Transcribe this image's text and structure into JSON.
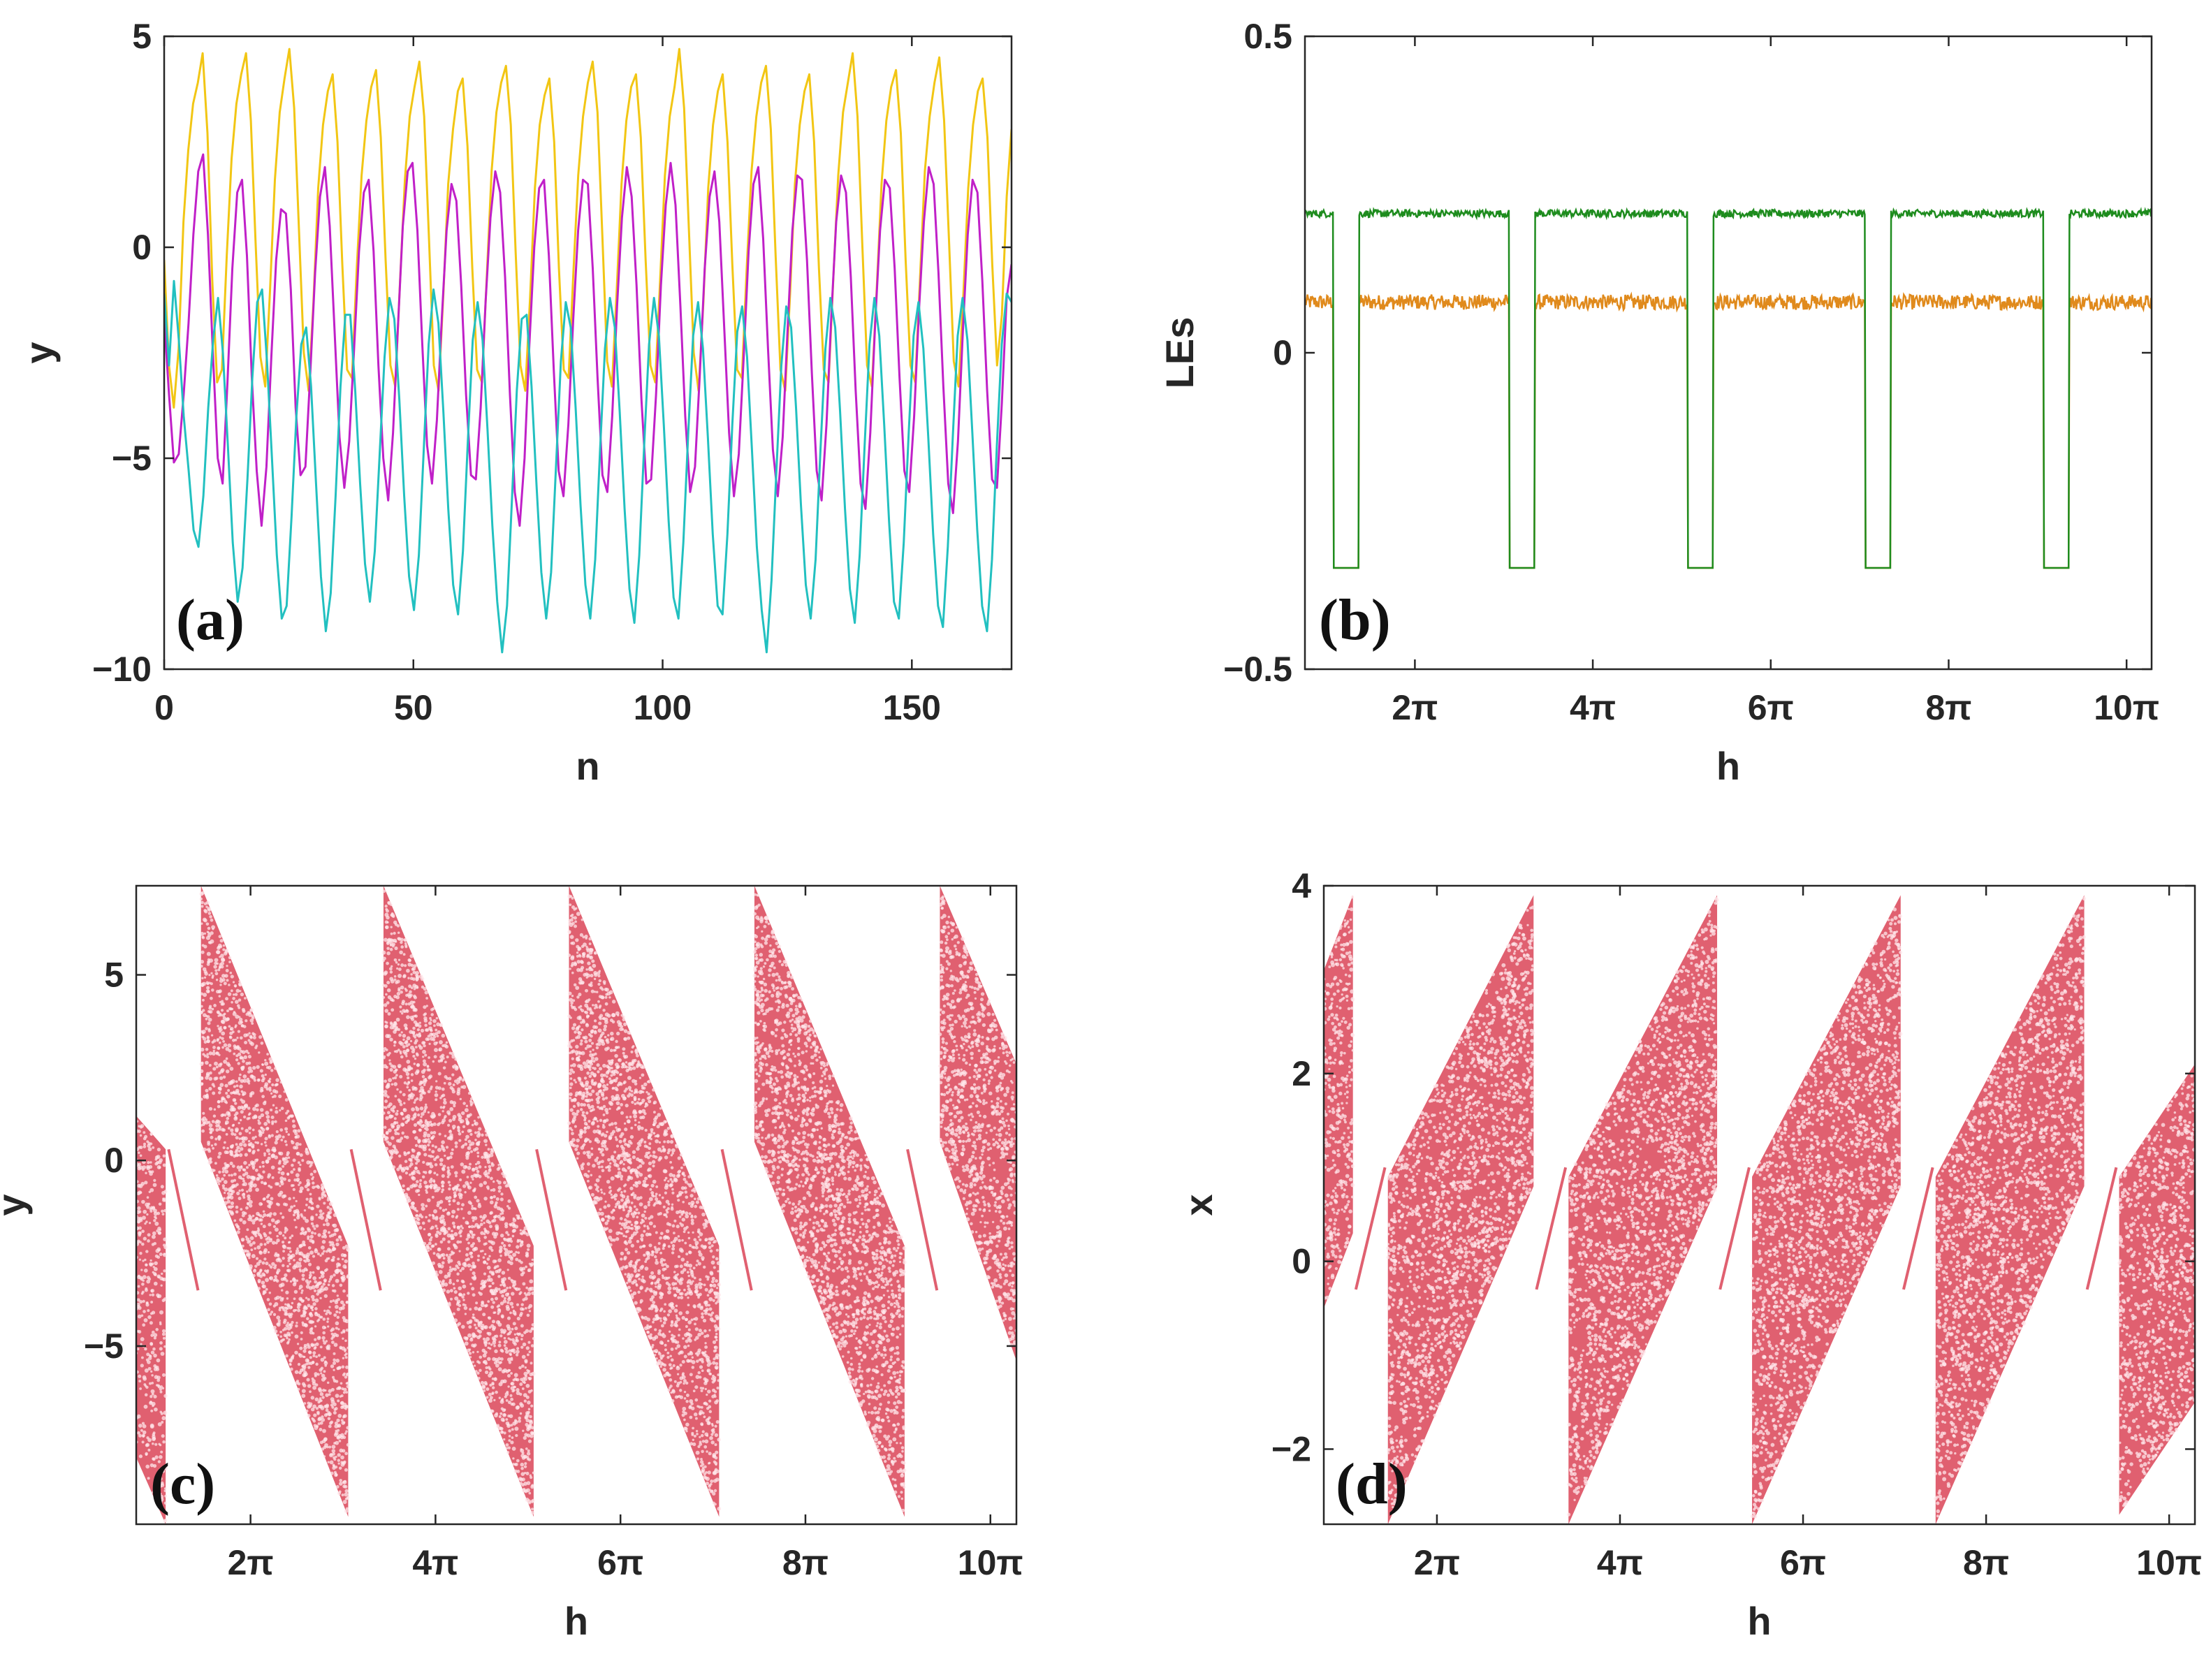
{
  "figure": {
    "description_labels": [
      "(a)",
      "(b)",
      "(c)",
      "(d)"
    ]
  },
  "chart_data": [
    {
      "id": "a",
      "type": "line",
      "panel_label": "(a)",
      "xlabel": "n",
      "ylabel": "y",
      "xlim": [
        0,
        170
      ],
      "ylim": [
        -10,
        5
      ],
      "xticks": [
        0,
        50,
        100,
        150
      ],
      "xtick_labels": [
        "0",
        "50",
        "100",
        "150"
      ],
      "yticks": [
        -10,
        -5,
        0,
        5
      ],
      "ytick_labels": [
        "−10",
        "−5",
        "0",
        "5"
      ],
      "series": [
        {
          "name": "yellow",
          "color": "#f2c614",
          "values": [
            -0.3,
            -2.8,
            -3.8,
            -2.4,
            0.6,
            2.3,
            3.4,
            3.9,
            4.6,
            2.7,
            -0.8,
            -3.2,
            -2.9,
            -0.2,
            2.1,
            3.4,
            4.1,
            4.6,
            3.0,
            0.1,
            -2.6,
            -3.3,
            -1.0,
            1.6,
            3.2,
            4.0,
            4.7,
            3.3,
            0.4,
            -2.5,
            -3.4,
            -1.3,
            1.4,
            2.9,
            3.7,
            4.1,
            2.5,
            -0.4,
            -2.9,
            -3.1,
            -0.5,
            1.7,
            3.0,
            3.8,
            4.2,
            2.6,
            -0.3,
            -2.8,
            -3.3,
            -0.8,
            1.6,
            3.1,
            3.8,
            4.4,
            3.1,
            0.2,
            -2.8,
            -3.4,
            -1.1,
            1.5,
            2.8,
            3.7,
            4.0,
            2.4,
            -0.5,
            -2.9,
            -3.2,
            -0.7,
            1.8,
            3.2,
            3.9,
            4.3,
            2.9,
            -0.1,
            -2.8,
            -3.4,
            -1.2,
            1.4,
            2.9,
            3.6,
            4.0,
            2.5,
            -0.5,
            -2.9,
            -3.1,
            -0.6,
            1.7,
            3.1,
            3.9,
            4.4,
            3.2,
            0.3,
            -2.7,
            -3.3,
            -1.0,
            1.5,
            3.0,
            3.8,
            4.1,
            2.6,
            -0.3,
            -2.8,
            -3.2,
            -0.8,
            1.7,
            3.1,
            3.8,
            4.7,
            3.3,
            0.4,
            -2.5,
            -3.4,
            -1.3,
            1.4,
            2.9,
            3.7,
            4.1,
            2.5,
            -0.4,
            -2.9,
            -3.1,
            -0.5,
            1.8,
            3.1,
            3.9,
            4.3,
            2.8,
            -0.2,
            -2.9,
            -3.4,
            -1.1,
            1.5,
            2.9,
            3.7,
            4.1,
            2.5,
            -0.5,
            -2.9,
            -3.2,
            -0.7,
            1.7,
            3.2,
            3.9,
            4.6,
            3.1,
            0.1,
            -2.8,
            -3.3,
            -1.0,
            1.5,
            3.0,
            3.8,
            4.2,
            2.7,
            -0.3,
            -2.8,
            -3.2,
            -0.7,
            1.8,
            3.1,
            3.9,
            4.5,
            3.0,
            0.2,
            -2.7,
            -3.3,
            -1.1,
            1.4,
            2.9,
            3.7,
            4.0,
            2.6,
            -0.4,
            -2.8,
            -1.6,
            1.2,
            2.8
          ]
        },
        {
          "name": "magenta",
          "color": "#c020c8",
          "values": [
            -1.7,
            -3.5,
            -5.1,
            -4.9,
            -3.5,
            -1.8,
            0.3,
            1.8,
            2.2,
            0.3,
            -2.5,
            -5.0,
            -5.6,
            -3.2,
            -0.5,
            1.3,
            1.6,
            -0.2,
            -3.1,
            -5.3,
            -6.6,
            -5.2,
            -2.6,
            -0.3,
            0.9,
            0.8,
            -1.0,
            -3.8,
            -5.4,
            -5.2,
            -3.0,
            -0.6,
            1.2,
            1.9,
            0.5,
            -2.0,
            -4.5,
            -5.7,
            -4.6,
            -2.4,
            -0.1,
            1.3,
            1.6,
            -0.1,
            -2.8,
            -5.0,
            -6.0,
            -4.4,
            -1.9,
            0.5,
            1.8,
            2.0,
            0.4,
            -2.3,
            -4.7,
            -5.6,
            -4.1,
            -1.7,
            0.4,
            1.5,
            1.1,
            -0.9,
            -3.5,
            -5.4,
            -5.5,
            -3.8,
            -1.3,
            0.7,
            1.8,
            1.3,
            -0.7,
            -3.5,
            -5.8,
            -6.6,
            -5.0,
            -2.3,
            0.0,
            1.4,
            1.6,
            -0.2,
            -2.9,
            -5.3,
            -5.9,
            -4.2,
            -1.7,
            0.4,
            1.6,
            1.5,
            -0.5,
            -3.1,
            -5.4,
            -5.8,
            -4.0,
            -1.4,
            0.7,
            1.9,
            1.2,
            -0.9,
            -3.6,
            -5.6,
            -5.5,
            -3.5,
            -0.9,
            1.0,
            2.0,
            1.0,
            -1.4,
            -4.0,
            -5.8,
            -5.2,
            -3.0,
            -0.5,
            1.2,
            1.8,
            0.6,
            -1.9,
            -4.4,
            -5.9,
            -4.9,
            -2.6,
            -0.1,
            1.5,
            1.9,
            0.2,
            -2.4,
            -4.8,
            -5.9,
            -4.5,
            -2.0,
            0.4,
            1.7,
            1.6,
            -0.3,
            -3.0,
            -5.3,
            -6.0,
            -4.2,
            -1.6,
            0.6,
            1.7,
            1.3,
            -0.7,
            -3.4,
            -5.6,
            -6.2,
            -4.4,
            -1.8,
            0.4,
            1.6,
            1.4,
            -0.5,
            -3.1,
            -5.3,
            -5.8,
            -4.0,
            -1.5,
            0.6,
            1.9,
            1.5,
            -0.6,
            -3.3,
            -5.6,
            -6.3,
            -4.6,
            -2.0,
            0.3,
            1.6,
            1.3,
            -0.8,
            -3.4,
            -5.5,
            -5.7,
            -3.7,
            -1.2,
            -0.4
          ]
        },
        {
          "name": "cyan",
          "color": "#22c0c0",
          "values": [
            -1.1,
            -2.8,
            -0.8,
            -2.2,
            -4.0,
            -5.3,
            -6.7,
            -7.1,
            -5.9,
            -3.8,
            -2.2,
            -1.2,
            -2.5,
            -4.7,
            -7.0,
            -8.4,
            -7.6,
            -5.5,
            -3.1,
            -1.3,
            -1.0,
            -2.7,
            -5.0,
            -7.3,
            -8.8,
            -8.5,
            -6.4,
            -4.0,
            -2.3,
            -1.9,
            -3.3,
            -5.6,
            -7.8,
            -9.1,
            -8.2,
            -5.9,
            -3.3,
            -1.6,
            -1.6,
            -3.4,
            -5.6,
            -7.5,
            -8.4,
            -7.2,
            -4.9,
            -2.6,
            -1.2,
            -1.7,
            -3.6,
            -5.9,
            -7.8,
            -8.6,
            -7.3,
            -4.8,
            -2.3,
            -1.0,
            -1.8,
            -3.9,
            -6.2,
            -8.0,
            -8.7,
            -7.2,
            -4.6,
            -2.2,
            -1.3,
            -2.2,
            -4.3,
            -6.6,
            -8.4,
            -9.6,
            -8.5,
            -6.0,
            -3.4,
            -1.7,
            -1.6,
            -3.3,
            -5.6,
            -7.7,
            -8.8,
            -7.7,
            -5.2,
            -2.7,
            -1.3,
            -1.9,
            -3.8,
            -6.1,
            -8.0,
            -8.8,
            -7.4,
            -4.8,
            -2.4,
            -1.2,
            -1.9,
            -3.9,
            -6.2,
            -8.1,
            -8.9,
            -7.3,
            -4.7,
            -2.3,
            -1.2,
            -2.1,
            -4.2,
            -6.5,
            -8.3,
            -8.8,
            -7.0,
            -4.4,
            -2.1,
            -1.3,
            -2.4,
            -4.5,
            -6.8,
            -8.5,
            -8.7,
            -6.8,
            -4.2,
            -2.0,
            -1.4,
            -2.6,
            -4.8,
            -7.1,
            -8.6,
            -9.6,
            -7.9,
            -5.3,
            -2.8,
            -1.4,
            -1.9,
            -3.8,
            -6.1,
            -8.0,
            -8.8,
            -7.4,
            -4.8,
            -2.4,
            -1.2,
            -1.9,
            -3.9,
            -6.2,
            -8.1,
            -8.9,
            -7.3,
            -4.7,
            -2.3,
            -1.2,
            -2.1,
            -4.2,
            -6.5,
            -8.4,
            -8.8,
            -7.0,
            -4.4,
            -2.1,
            -1.3,
            -2.4,
            -4.5,
            -6.8,
            -8.5,
            -9.0,
            -7.1,
            -4.5,
            -2.1,
            -1.2,
            -2.2,
            -4.4,
            -6.7,
            -8.5,
            -9.1,
            -7.4,
            -4.7,
            -2.3,
            -1.1,
            -1.3
          ]
        }
      ]
    },
    {
      "id": "b",
      "type": "line",
      "panel_label": "(b)",
      "xlabel": "h",
      "ylabel": "LEs",
      "xlim": [
        2.4,
        32.3
      ],
      "ylim": [
        -0.5,
        0.5
      ],
      "xticks": [
        6.283,
        12.566,
        18.85,
        25.133,
        31.416
      ],
      "xtick_labels": [
        "2π",
        "4π",
        "6π",
        "8π",
        "10π"
      ],
      "yticks": [
        -0.5,
        0,
        0.5
      ],
      "ytick_labels": [
        "−0.5",
        "0",
        "0.5"
      ],
      "periodic_window_width": 0.9,
      "periodic_window_starts": [
        3.4,
        9.6,
        15.9,
        22.2,
        28.5
      ],
      "series": [
        {
          "name": "largest LE",
          "color": "#1e8c1e",
          "chaotic_value": 0.22,
          "periodic_value": -0.34
        },
        {
          "name": "second LE",
          "color": "#e08a1c",
          "chaotic_value": 0.08,
          "periodic_value": -0.34
        }
      ]
    },
    {
      "id": "c",
      "type": "scatter",
      "panel_label": "(c)",
      "xlabel": "h",
      "ylabel": "y",
      "xlim": [
        2.4,
        32.3
      ],
      "ylim": [
        -9.8,
        7.4
      ],
      "xticks": [
        6.283,
        12.566,
        18.85,
        25.133,
        31.416
      ],
      "xtick_labels": [
        "2π",
        "4π",
        "6π",
        "8π",
        "10π"
      ],
      "yticks": [
        -5,
        0,
        5
      ],
      "ytick_labels": [
        "−5",
        "0",
        "5"
      ],
      "color": "#e06070",
      "bands": [
        {
          "x0": 2.4,
          "x1": 3.4,
          "top": [
            1.2,
            0.3
          ],
          "bottom": [
            -8.0,
            -9.8
          ]
        },
        {
          "x0": 4.6,
          "x1": 9.6,
          "top": [
            7.4,
            -2.3
          ],
          "bottom": [
            0.5,
            -9.6
          ]
        },
        {
          "x0": 10.8,
          "x1": 15.9,
          "top": [
            7.4,
            -2.3
          ],
          "bottom": [
            0.5,
            -9.6
          ]
        },
        {
          "x0": 17.1,
          "x1": 22.2,
          "top": [
            7.4,
            -2.3
          ],
          "bottom": [
            0.5,
            -9.6
          ]
        },
        {
          "x0": 23.4,
          "x1": 28.5,
          "top": [
            7.4,
            -2.3
          ],
          "bottom": [
            0.5,
            -9.6
          ]
        },
        {
          "x0": 29.7,
          "x1": 32.3,
          "top": [
            7.4,
            2.6
          ],
          "bottom": [
            0.5,
            -5.4
          ]
        }
      ],
      "periodic_lines": [
        {
          "x0": 3.5,
          "x1": 4.5,
          "y0": 0.3,
          "y1": -3.5
        },
        {
          "x0": 9.7,
          "x1": 10.7,
          "y0": 0.3,
          "y1": -3.5
        },
        {
          "x0": 16.0,
          "x1": 17.0,
          "y0": 0.3,
          "y1": -3.5
        },
        {
          "x0": 22.3,
          "x1": 23.3,
          "y0": 0.3,
          "y1": -3.5
        },
        {
          "x0": 28.6,
          "x1": 29.6,
          "y0": 0.3,
          "y1": -3.5
        }
      ]
    },
    {
      "id": "d",
      "type": "scatter",
      "panel_label": "(d)",
      "xlabel": "h",
      "ylabel": "x",
      "xlim": [
        2.4,
        32.3
      ],
      "ylim": [
        -2.8,
        4.0
      ],
      "xticks": [
        6.283,
        12.566,
        18.85,
        25.133,
        31.416
      ],
      "xtick_labels": [
        "2π",
        "4π",
        "6π",
        "8π",
        "10π"
      ],
      "yticks": [
        -2,
        0,
        2,
        4
      ],
      "ytick_labels": [
        "−2",
        "0",
        "2",
        "4"
      ],
      "color": "#e06070",
      "bands": [
        {
          "x0": 2.4,
          "x1": 3.4,
          "top": [
            3.1,
            3.9
          ],
          "bottom": [
            -0.5,
            0.3
          ]
        },
        {
          "x0": 4.6,
          "x1": 9.6,
          "top": [
            0.9,
            3.9
          ],
          "bottom": [
            -2.8,
            0.8
          ]
        },
        {
          "x0": 10.8,
          "x1": 15.9,
          "top": [
            0.9,
            3.9
          ],
          "bottom": [
            -2.8,
            0.8
          ]
        },
        {
          "x0": 17.1,
          "x1": 22.2,
          "top": [
            0.9,
            3.9
          ],
          "bottom": [
            -2.8,
            0.8
          ]
        },
        {
          "x0": 23.4,
          "x1": 28.5,
          "top": [
            0.9,
            3.9
          ],
          "bottom": [
            -2.8,
            0.8
          ]
        },
        {
          "x0": 29.7,
          "x1": 32.3,
          "top": [
            0.9,
            2.1
          ],
          "bottom": [
            -2.7,
            -1.5
          ]
        }
      ],
      "periodic_lines": [
        {
          "x0": 3.5,
          "x1": 4.5,
          "y0": -0.3,
          "y1": 1.0
        },
        {
          "x0": 9.7,
          "x1": 10.7,
          "y0": -0.3,
          "y1": 1.0
        },
        {
          "x0": 16.0,
          "x1": 17.0,
          "y0": -0.3,
          "y1": 1.0
        },
        {
          "x0": 22.3,
          "x1": 23.3,
          "y0": -0.3,
          "y1": 1.0
        },
        {
          "x0": 28.6,
          "x1": 29.6,
          "y0": -0.3,
          "y1": 1.0
        }
      ]
    }
  ]
}
